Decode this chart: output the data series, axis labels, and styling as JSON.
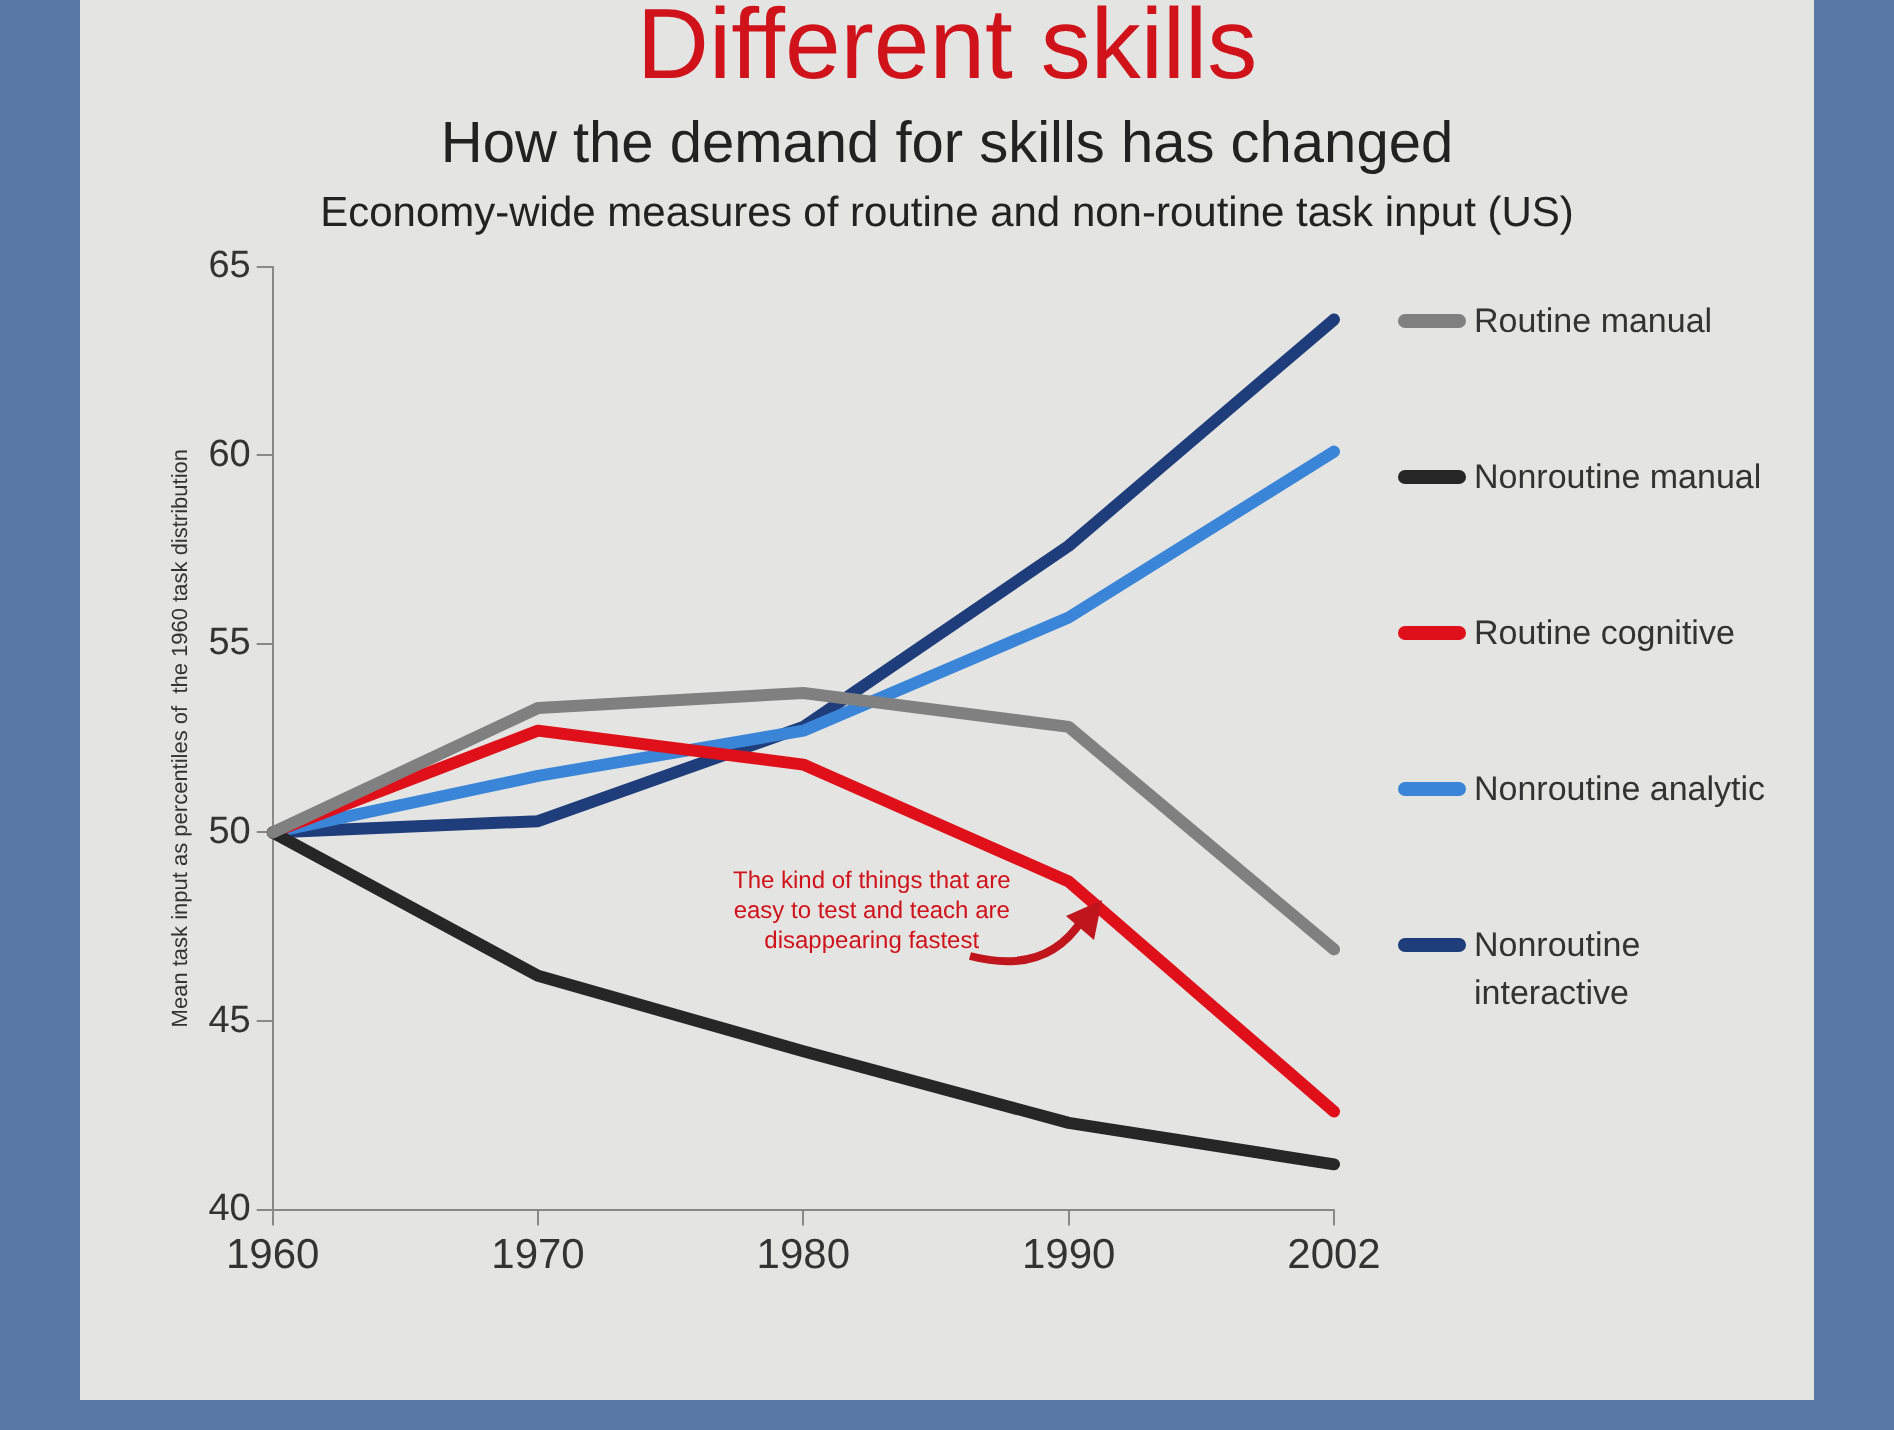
{
  "chart_data": {
    "type": "line",
    "title": "Different skills",
    "subtitle": "How the demand for skills has changed",
    "annotations": [
      "Economy-wide measures of routine and non-routine task input (US)",
      "The kind of things that are easy to test and teach are disappearing fastest"
    ],
    "ylabel": "Mean task input as percentiles of  the 1960 task distribution",
    "categories": [
      "1960",
      "1970",
      "1980",
      "1990",
      "2002"
    ],
    "series": [
      {
        "name": "Routine manual",
        "color": "#808080",
        "values": [
          50,
          53.3,
          53.7,
          52.8,
          46.9
        ]
      },
      {
        "name": "Nonroutine manual",
        "color": "#262626",
        "values": [
          50,
          46.2,
          44.2,
          42.3,
          41.2
        ]
      },
      {
        "name": "Routine cognitive",
        "color": "#e0101a",
        "values": [
          50,
          52.7,
          51.8,
          48.7,
          42.6
        ]
      },
      {
        "name": "Nonroutine analytic",
        "color": "#3a85d8",
        "values": [
          50,
          51.5,
          52.7,
          55.7,
          60.1
        ]
      },
      {
        "name": "Nonroutine interactive",
        "color": "#1f3d7a",
        "values": [
          50,
          50.3,
          52.8,
          57.6,
          63.6
        ]
      }
    ],
    "ylim": [
      40,
      65
    ],
    "yticks": [
      40,
      45,
      50,
      55,
      60,
      65
    ],
    "grid": false,
    "legend": "right",
    "marker": "none",
    "line_style": "solid"
  }
}
